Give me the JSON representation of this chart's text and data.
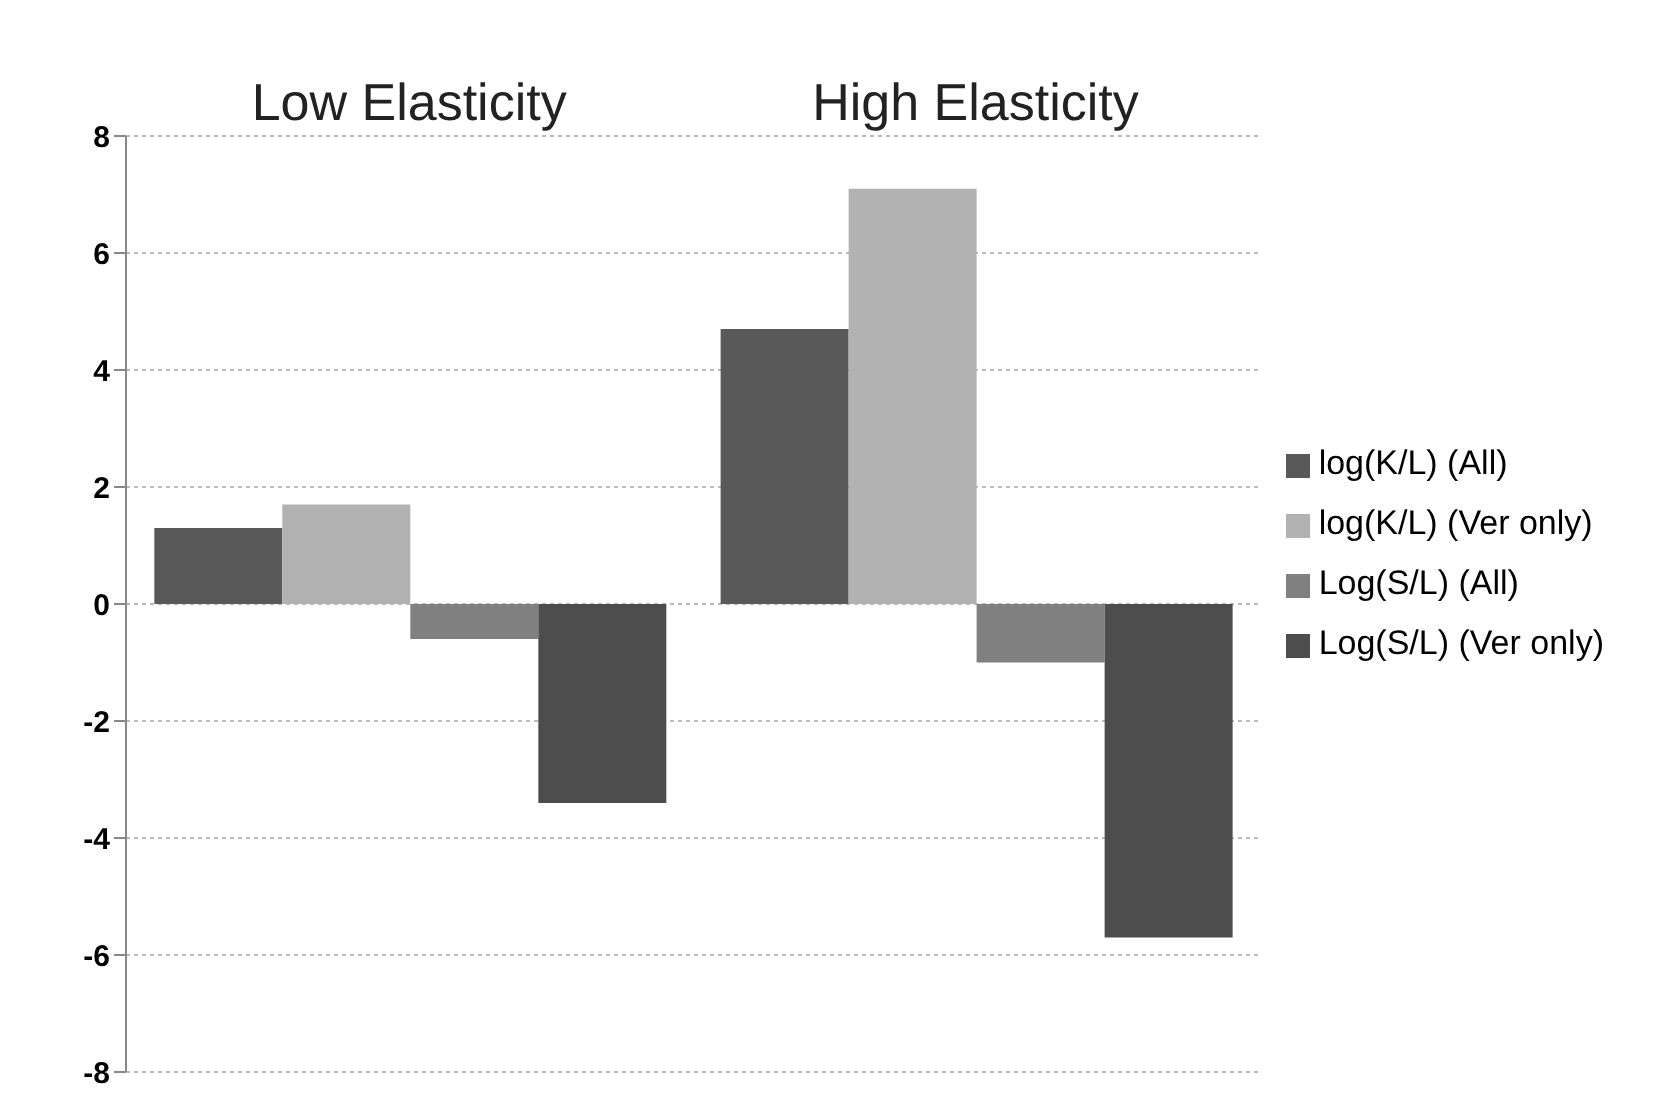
{
  "chart_data": {
    "type": "bar",
    "categories": [
      "Low Elasticity",
      "High Elasticity"
    ],
    "series": [
      {
        "name": "log(K/L) (All)",
        "color": "#595959",
        "values": [
          1.3,
          4.7
        ]
      },
      {
        "name": "log(K/L) (Ver only)",
        "color": "#b2b2b2",
        "values": [
          1.7,
          7.1
        ]
      },
      {
        "name": "Log(S/L) (All)",
        "color": "#808080",
        "values": [
          -0.6,
          -1.0
        ]
      },
      {
        "name": "Log(S/L) (Ver only)",
        "color": "#4d4d4d",
        "values": [
          -3.4,
          -5.7
        ]
      }
    ],
    "ylim": [
      -8,
      8
    ],
    "yticks": [
      -8,
      -6,
      -4,
      -2,
      0,
      2,
      4,
      6,
      8
    ],
    "grid": "y",
    "legend": "right"
  }
}
